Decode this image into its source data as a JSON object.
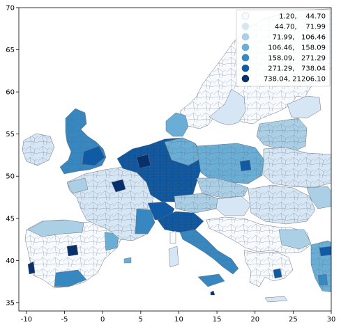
{
  "map": {
    "title": "",
    "xlim": [
      -11,
      30
    ],
    "ylim": [
      34,
      70
    ],
    "x_ticks": [
      "-10",
      "-5",
      "0",
      "5",
      "10",
      "15",
      "20",
      "25",
      "30"
    ],
    "y_ticks": [
      "35",
      "40",
      "45",
      "50",
      "55",
      "60",
      "65",
      "70"
    ],
    "color_scheme": "Blues",
    "legend_placement": "upper right",
    "legend_classes": [
      {
        "label": "1.20,    44.70",
        "color": "#f7fbff"
      },
      {
        "label": "44.70,    71.99",
        "color": "#d6e6f4"
      },
      {
        "label": "71.99,   106.46",
        "color": "#abd0e6"
      },
      {
        "label": "106.46,   158.09",
        "color": "#6aaed6"
      },
      {
        "label": "158.09,   271.29",
        "color": "#3787c0"
      },
      {
        "label": "271.29,   738.04",
        "color": "#105ba4"
      },
      {
        "label": "738.04, 21206.10",
        "color": "#08306b"
      }
    ]
  }
}
